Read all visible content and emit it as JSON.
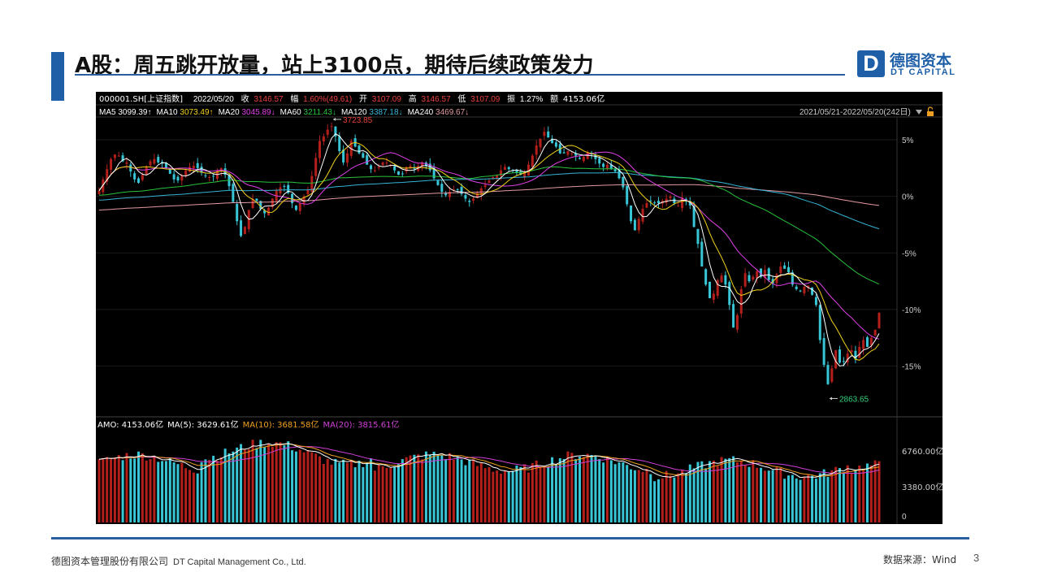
{
  "slide": {
    "title": "A股：周五跳开放量，站上3100点，期待后续政策发力",
    "page_number": "3"
  },
  "logo": {
    "mark": "D",
    "name_cn": "德图资本",
    "name_en": "DT CAPITAL"
  },
  "footer": {
    "company_cn": "德图资本管理股份有限公司",
    "company_en": "DT Capital Management Co., Ltd.",
    "source": "数据来源：Wind"
  },
  "colors": {
    "accent": "#1f5fa8",
    "background_chart": "#000000",
    "up": "#b3201c",
    "down": "#38c6d6",
    "ma5": "#ffffff",
    "ma10": "#f2d21b",
    "ma20": "#e040e8",
    "ma60": "#28c43c",
    "ma120": "#35b5d6",
    "ma240": "#e39aa2",
    "vol_ma5": "#ffffff",
    "vol_ma10": "#f0a020",
    "vol_ma20": "#d040d8"
  },
  "quote": {
    "code": "000001.SH[上证指数]",
    "date": "2022/05/20",
    "close_label": "收",
    "close": "3146.57",
    "change_label": "幅",
    "change": "1.60%(49.61)",
    "open_label": "开",
    "open": "3107.09",
    "high_label": "高",
    "high": "3146.57",
    "low_label": "低",
    "low": "3107.09",
    "amplitude_label": "振",
    "amplitude": "1.27%",
    "amount_label": "额",
    "amount": "4153.06亿"
  },
  "ma_legend": [
    {
      "label": "MA5",
      "value": "3099.39↑",
      "color": "#ffffff"
    },
    {
      "label": "MA10",
      "value": "3073.49↑",
      "color": "#f2d21b"
    },
    {
      "label": "MA20",
      "value": "3045.89↓",
      "color": "#e040e8"
    },
    {
      "label": "MA60",
      "value": "3211.43↓",
      "color": "#28c43c"
    },
    {
      "label": "MA120",
      "value": "3387.18↓",
      "color": "#35b5d6"
    },
    {
      "label": "MA240",
      "value": "3469.67↓",
      "color": "#e39aa2"
    }
  ],
  "date_range": "2021/05/21-2022/05/20(242日)",
  "volume_legend": [
    {
      "label": "AMO:",
      "value": "4153.06亿",
      "color": "#ffffff"
    },
    {
      "label": "MA(5):",
      "value": "3629.61亿",
      "color": "#ffffff"
    },
    {
      "label": "MA(10):",
      "value": "3681.58亿",
      "color": "#f0a020"
    },
    {
      "label": "MA(20):",
      "value": "3815.61亿",
      "color": "#d040d8"
    }
  ],
  "chart_data": {
    "type": "candlestick",
    "base_close": 3486.6,
    "ylim_pct": [
      -19.2,
      6.8
    ],
    "y_ticks_pct": [
      5,
      0,
      -5,
      -10,
      -15
    ],
    "y_tick_labels": [
      "5%",
      "0%",
      "-5%",
      "-10%",
      "-15%"
    ],
    "annotations": [
      {
        "label": "3723.85",
        "value": 3723.85,
        "kind": "high"
      },
      {
        "label": "2863.65",
        "value": 2863.65,
        "kind": "low"
      }
    ],
    "close_pct_series": [
      0.5,
      1.5,
      2.4,
      3.3,
      3.7,
      3.6,
      3.1,
      3.0,
      2.2,
      1.5,
      1.2,
      1.9,
      2.6,
      3.1,
      3.3,
      3.0,
      2.9,
      2.5,
      2.0,
      1.5,
      1.4,
      1.8,
      2.3,
      2.6,
      2.7,
      2.5,
      2.1,
      1.8,
      1.7,
      1.8,
      2.3,
      2.5,
      1.9,
      0.9,
      -0.5,
      -2.2,
      -3.5,
      -2.7,
      -1.2,
      -0.2,
      -0.4,
      -1.1,
      -1.5,
      -1.0,
      -0.2,
      0.5,
      0.8,
      0.9,
      0.3,
      -0.6,
      -1.2,
      -0.6,
      0.0,
      0.6,
      1.8,
      3.4,
      4.9,
      5.3,
      5.9,
      6.2,
      5.3,
      4.0,
      3.0,
      3.8,
      4.9,
      4.4,
      3.8,
      3.4,
      2.8,
      2.4,
      2.3,
      2.6,
      3.0,
      3.0,
      2.8,
      2.3,
      1.9,
      2.0,
      2.6,
      2.7,
      2.5,
      2.7,
      3.0,
      2.7,
      2.3,
      1.6,
      1.0,
      0.4,
      0.1,
      0.4,
      0.6,
      0.6,
      0.2,
      -0.2,
      -0.5,
      -0.2,
      0.3,
      0.7,
      1.0,
      1.4,
      1.7,
      1.9,
      2.3,
      2.6,
      2.4,
      2.3,
      2.1,
      1.9,
      2.1,
      2.8,
      3.6,
      4.5,
      5.1,
      5.7,
      5.2,
      4.7,
      4.4,
      3.8,
      3.8,
      4.0,
      3.8,
      3.6,
      3.3,
      3.5,
      3.9,
      3.7,
      3.3,
      2.9,
      2.6,
      2.8,
      2.4,
      2.2,
      1.6,
      0.8,
      -0.7,
      -2.2,
      -3.0,
      -2.0,
      -1.1,
      -0.6,
      -0.4,
      -0.6,
      -0.6,
      -0.4,
      -0.2,
      0.0,
      -0.6,
      -0.8,
      -0.1,
      -0.3,
      -0.8,
      -2.7,
      -4.2,
      -6.2,
      -7.8,
      -9.0,
      -8.6,
      -7.4,
      -7.0,
      -7.8,
      -9.6,
      -11.6,
      -10.5,
      -8.2,
      -6.8,
      -7.5,
      -7.1,
      -6.6,
      -7.1,
      -6.5,
      -7.4,
      -7.7,
      -6.9,
      -6.2,
      -6.4,
      -6.7,
      -7.8,
      -8.2,
      -8.4,
      -8.0,
      -7.9,
      -8.7,
      -9.6,
      -12.7,
      -14.9,
      -16.6,
      -15.2,
      -13.6,
      -14.7,
      -14.6,
      -13.9,
      -13.6,
      -14.4,
      -13.3,
      -12.7,
      -13.3,
      -12.5,
      -11.8,
      -10.3
    ]
  }
}
